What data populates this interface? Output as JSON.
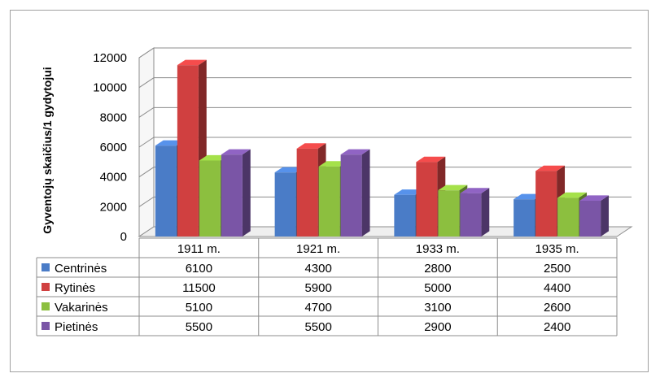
{
  "chart_data": {
    "type": "bar",
    "style": "3d-clustered-column-with-data-table",
    "ylabel": "Gyventojų skaičius/1 gydytojui",
    "xlabel": "",
    "ylim": [
      0,
      12000
    ],
    "yticks": [
      0,
      2000,
      4000,
      6000,
      8000,
      10000,
      12000
    ],
    "grid": true,
    "legend": "data-table-left",
    "categories": [
      "1911 m.",
      "1921 m.",
      "1933 m.",
      "1935 m."
    ],
    "series": [
      {
        "name": "Centrinės",
        "color": "#4a7cc7",
        "values": [
          6100,
          4300,
          2800,
          2500
        ]
      },
      {
        "name": "Rytinės",
        "color": "#d04040",
        "values": [
          11500,
          5900,
          5000,
          4400
        ]
      },
      {
        "name": "Vakarinės",
        "color": "#8cbf3f",
        "values": [
          5100,
          4700,
          3100,
          2600
        ]
      },
      {
        "name": "Pietinės",
        "color": "#7a55a6",
        "values": [
          5500,
          5500,
          2900,
          2400
        ]
      }
    ]
  }
}
